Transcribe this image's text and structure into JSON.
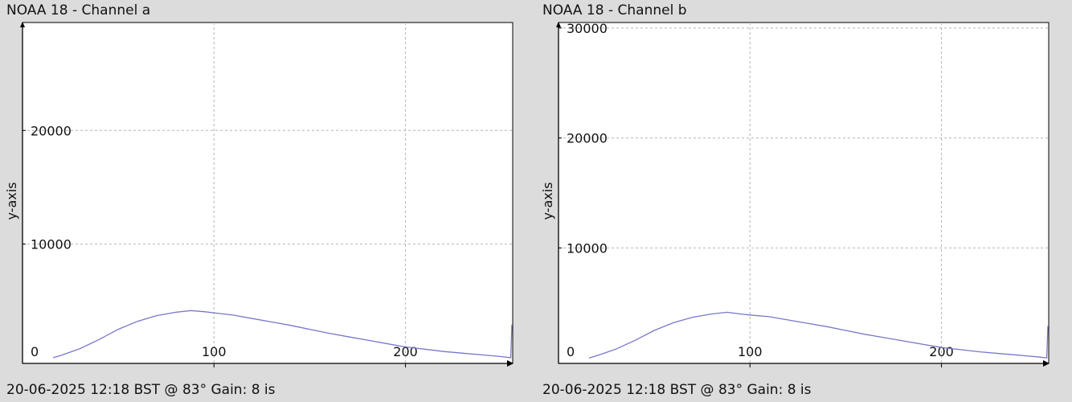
{
  "chart_data": [
    {
      "type": "line",
      "title": "NOAA 18 - Channel a",
      "footer": "20-06-2025 12:18 BST @ 83° Gain: 8 is",
      "xlabel": "",
      "ylabel": "y-axis",
      "xlim": [
        0,
        256
      ],
      "ylim": [
        -500,
        29500
      ],
      "x_ticks": [
        0,
        100,
        200
      ],
      "y_ticks": [
        10000,
        20000
      ],
      "grid": true,
      "colors": {
        "line": "#7777cc",
        "grid": "#b5b5b5",
        "axis": "#000000",
        "background": "#ffffff"
      },
      "series": [
        {
          "x": [
            16,
            20,
            30,
            40,
            50,
            60,
            70,
            80,
            88,
            95,
            100,
            110,
            120,
            130,
            140,
            150,
            160,
            170,
            180,
            190,
            200,
            210,
            220,
            230,
            240,
            250,
            255,
            256
          ],
          "values": [
            0,
            200,
            800,
            1600,
            2500,
            3200,
            3700,
            4000,
            4150,
            4050,
            3950,
            3750,
            3450,
            3150,
            2850,
            2500,
            2150,
            1850,
            1550,
            1250,
            950,
            750,
            550,
            400,
            250,
            100,
            0,
            2900
          ]
        }
      ]
    },
    {
      "type": "line",
      "title": "NOAA 18 - Channel b",
      "footer": "20-06-2025 12:18 BST @ 83° Gain: 8 is",
      "xlabel": "",
      "ylabel": "y-axis",
      "xlim": [
        0,
        256
      ],
      "ylim": [
        -500,
        30500
      ],
      "x_ticks": [
        0,
        100,
        200
      ],
      "y_ticks": [
        10000,
        20000,
        30000
      ],
      "grid": true,
      "colors": {
        "line": "#7777cc",
        "grid": "#b5b5b5",
        "axis": "#000000",
        "background": "#ffffff"
      },
      "series": [
        {
          "x": [
            16,
            20,
            30,
            40,
            50,
            60,
            70,
            80,
            88,
            95,
            100,
            110,
            120,
            130,
            140,
            150,
            160,
            170,
            180,
            190,
            200,
            210,
            220,
            230,
            240,
            250,
            255,
            256
          ],
          "values": [
            0,
            200,
            800,
            1600,
            2500,
            3200,
            3700,
            4000,
            4150,
            4000,
            3900,
            3750,
            3450,
            3150,
            2850,
            2500,
            2150,
            1850,
            1550,
            1250,
            950,
            750,
            550,
            400,
            250,
            100,
            0,
            2900
          ]
        }
      ]
    }
  ]
}
